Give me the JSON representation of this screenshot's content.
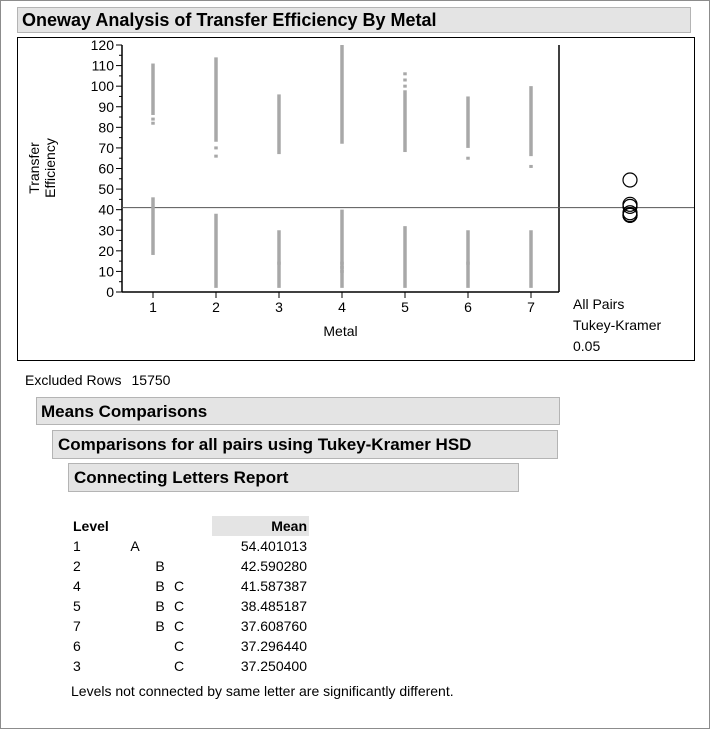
{
  "title": "Oneway Analysis of Transfer Efficiency By Metal",
  "chart_data": {
    "type": "scatter",
    "ylabel": "Transfer Efficiency",
    "xlabel": "Metal",
    "categories": [
      "1",
      "2",
      "3",
      "4",
      "5",
      "6",
      "7"
    ],
    "ylim": [
      0,
      120
    ],
    "y_ticks": [
      0,
      10,
      20,
      30,
      40,
      50,
      60,
      70,
      80,
      90,
      100,
      110,
      120
    ],
    "grand_mean": 41,
    "grid": false,
    "points": [
      {
        "level": "1",
        "ranges": [
          [
            18,
            46
          ],
          [
            86,
            111
          ]
        ],
        "outliers": [
          82,
          84
        ]
      },
      {
        "level": "2",
        "ranges": [
          [
            2,
            38
          ],
          [
            73,
            114
          ]
        ],
        "outliers": [
          66,
          70
        ]
      },
      {
        "level": "3",
        "ranges": [
          [
            2,
            30
          ],
          [
            67,
            96
          ]
        ],
        "outliers": [
          14
        ]
      },
      {
        "level": "4",
        "ranges": [
          [
            2,
            40
          ],
          [
            72,
            120
          ]
        ],
        "outliers": [
          10,
          12,
          14
        ]
      },
      {
        "level": "5",
        "ranges": [
          [
            2,
            32
          ],
          [
            68,
            98
          ]
        ],
        "outliers": [
          100,
          103,
          106
        ]
      },
      {
        "level": "6",
        "ranges": [
          [
            2,
            30
          ],
          [
            70,
            95
          ]
        ],
        "outliers": [
          65,
          14
        ]
      },
      {
        "level": "7",
        "ranges": [
          [
            2,
            30
          ],
          [
            66,
            100
          ]
        ],
        "outliers": [
          61
        ]
      }
    ],
    "comparison_circles": [
      {
        "level": "1",
        "center": 54.401013
      },
      {
        "level": "2",
        "center": 42.59028
      },
      {
        "level": "4",
        "center": 41.587387
      },
      {
        "level": "5",
        "center": 38.485187
      },
      {
        "level": "7",
        "center": 37.60876
      },
      {
        "level": "6",
        "center": 37.29644
      },
      {
        "level": "3",
        "center": 37.2504
      }
    ],
    "circle_labels": [
      "All Pairs",
      "Tukey-Kramer",
      "0.05"
    ]
  },
  "excluded": {
    "label": "Excluded Rows",
    "value": "15750"
  },
  "means_comparisons": "Means Comparisons",
  "comparisons_title": "Comparisons for all pairs using Tukey-Kramer HSD",
  "connecting_letters_title": "Connecting Letters Report",
  "report": {
    "level_header": "Level",
    "mean_header": "Mean",
    "rows": [
      {
        "level": "1",
        "letters": [
          "A",
          "",
          ""
        ],
        "mean": "54.401013"
      },
      {
        "level": "2",
        "letters": [
          "",
          "B",
          ""
        ],
        "mean": "42.590280"
      },
      {
        "level": "4",
        "letters": [
          "",
          "B",
          "C"
        ],
        "mean": "41.587387"
      },
      {
        "level": "5",
        "letters": [
          "",
          "B",
          "C"
        ],
        "mean": "38.485187"
      },
      {
        "level": "7",
        "letters": [
          "",
          "B",
          "C"
        ],
        "mean": "37.608760"
      },
      {
        "level": "6",
        "letters": [
          "",
          "",
          "C"
        ],
        "mean": "37.296440"
      },
      {
        "level": "3",
        "letters": [
          "",
          "",
          "C"
        ],
        "mean": "37.250400"
      }
    ],
    "footnote": "Levels not connected by same letter are significantly different."
  },
  "colors": {
    "header_bg": "#e4e4e4",
    "points": "#a8a8a8",
    "axis": "#000000"
  }
}
